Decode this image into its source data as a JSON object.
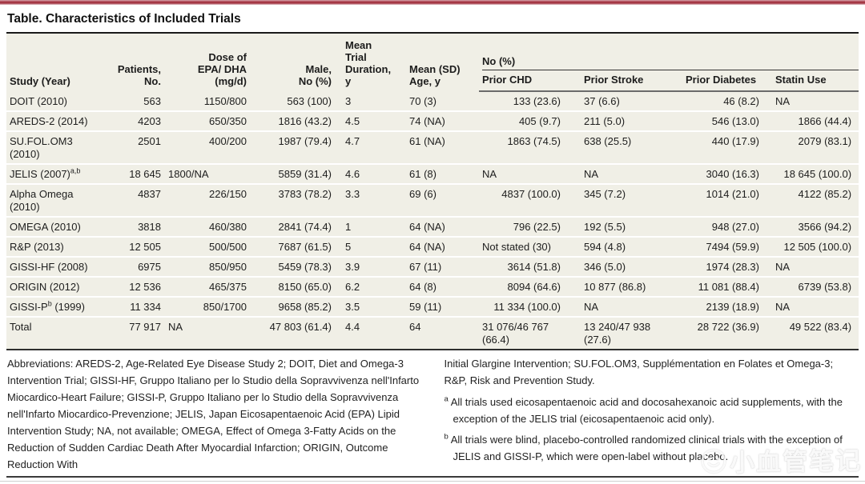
{
  "title": "Table. Characteristics of Included Trials",
  "table": {
    "group_header": "No (%)",
    "columns": [
      {
        "label": "Study (Year)"
      },
      {
        "label": "Patients,\nNo."
      },
      {
        "label": "Dose of\nEPA/ DHA\n(mg/d)"
      },
      {
        "label": "Male,\nNo (%)"
      },
      {
        "label": "Mean\nTrial\nDuration,\ny"
      },
      {
        "label": "Mean (SD)\nAge, y"
      },
      {
        "label": "Prior CHD"
      },
      {
        "label": "Prior Stroke"
      },
      {
        "label": "Prior Diabetes"
      },
      {
        "label": "Statin Use"
      }
    ],
    "rows": [
      {
        "study_pre": "DOIT (2010)",
        "study_sup": "",
        "study_post": "",
        "values": [
          "563",
          "1150/800",
          "563 (100)",
          "3",
          "70 (3)",
          "133 (23.6)",
          "37 (6.6)",
          "46 (8.2)",
          "NA"
        ]
      },
      {
        "study_pre": "AREDS-2 (2014)",
        "study_sup": "",
        "study_post": "",
        "values": [
          "4203",
          "650/350",
          "1816 (43.2)",
          "4.5",
          "74 (NA)",
          "405 (9.7)",
          "211 (5.0)",
          "546 (13.0)",
          "1866 (44.4)"
        ]
      },
      {
        "study_pre": "SU.FOL.OM3\n(2010)",
        "study_sup": "",
        "study_post": "",
        "values": [
          "2501",
          "400/200",
          "1987 (79.4)",
          "4.7",
          "61 (NA)",
          "1863 (74.5)",
          "638 (25.5)",
          "440 (17.9)",
          "2079 (83.1)"
        ]
      },
      {
        "study_pre": "JELIS (2007)",
        "study_sup": "a,b",
        "study_post": "",
        "values": [
          "18 645",
          "1800/NA",
          "5859 (31.4)",
          "4.6",
          "61 (8)",
          "NA",
          "NA",
          "3040 (16.3)",
          "18 645 (100.0)"
        ]
      },
      {
        "study_pre": "Alpha Omega\n(2010)",
        "study_sup": "",
        "study_post": "",
        "values": [
          "4837",
          "226/150",
          "3783 (78.2)",
          "3.3",
          "69 (6)",
          "4837 (100.0)",
          "345 (7.2)",
          "1014 (21.0)",
          "4122 (85.2)"
        ]
      },
      {
        "study_pre": "OMEGA (2010)",
        "study_sup": "",
        "study_post": "",
        "values": [
          "3818",
          "460/380",
          "2841 (74.4)",
          "1",
          "64 (NA)",
          "796 (22.5)",
          "192 (5.5)",
          "948 (27.0)",
          "3566 (94.2)"
        ]
      },
      {
        "study_pre": "R&P (2013)",
        "study_sup": "",
        "study_post": "",
        "values": [
          "12 505",
          "500/500",
          "7687 (61.5)",
          "5",
          "64 (NA)",
          "Not stated (30)",
          "594 (4.8)",
          "7494 (59.9)",
          "12 505 (100.0)"
        ]
      },
      {
        "study_pre": "GISSI-HF (2008)",
        "study_sup": "",
        "study_post": "",
        "values": [
          "6975",
          "850/950",
          "5459 (78.3)",
          "3.9",
          "67 (11)",
          "3614 (51.8)",
          "346 (5.0)",
          "1974 (28.3)",
          "NA"
        ]
      },
      {
        "study_pre": "ORIGIN (2012)",
        "study_sup": "",
        "study_post": "",
        "values": [
          "12 536",
          "465/375",
          "8150 (65.0)",
          "6.2",
          "64 (8)",
          "8094 (64.6)",
          "10 877 (86.8)",
          "11 081 (88.4)",
          "6739 (53.8)"
        ]
      },
      {
        "study_pre": "GISSI-P",
        "study_sup": "b",
        "study_post": " (1999)",
        "values": [
          "11 334",
          "850/1700",
          "9658 (85.2)",
          "3.5",
          "59 (11)",
          "11 334 (100.0)",
          "NA",
          "2139 (18.9)",
          "NA"
        ]
      },
      {
        "study_pre": "Total",
        "study_sup": "",
        "study_post": "",
        "values": [
          "77 917",
          "NA",
          "47 803 (61.4)",
          "4.4",
          "64",
          "31 076/46 767\n(66.4)",
          "13 240/47 938\n(27.6)",
          "28 722 (36.9)",
          "49 522 (83.4)"
        ]
      }
    ]
  },
  "footnotes": {
    "left": "Abbreviations: AREDS-2, Age-Related Eye Disease Study 2; DOIT, Diet and Omega-3 Intervention Trial; GISSI-HF, Gruppo Italiano per lo Studio della Sopravvivenza nell'Infarto Miocardico-Heart Failure; GISSI-P, Gruppo Italiano per lo Studio della Sopravvivenza nell'Infarto Miocardico-Prevenzione; JELIS, Japan Eicosapentaenoic Acid (EPA) Lipid Intervention Study; NA, not available; OMEGA, Effect of Omega 3-Fatty Acids on the Reduction of Sudden Cardiac Death After Myocardial Infarction; ORIGIN, Outcome Reduction With",
    "right_continuation": "Initial Glargine Intervention; SU.FOL.OM3, Supplémentation en Folates et Omega-3; R&P, Risk and Prevention Study.",
    "items": [
      {
        "mark": "a",
        "text": "All trials used eicosapentaenoic acid and docosahexanoic acid supplements, with the exception of the JELIS trial (eicosapentaenoic acid only)."
      },
      {
        "mark": "b",
        "text": "All trials were blind, placebo-controlled randomized clinical trials with the exception of JELIS and GISSI-P, which were open-label without placebo."
      }
    ]
  },
  "watermark": {
    "text": "小血管笔记",
    "icon": "smiley-face"
  },
  "colors": {
    "accent_bar": "#a63845",
    "table_band": "#f0efe6",
    "rule_dark": "#1a1a1a",
    "rule_gray": "#6b6b6b"
  }
}
